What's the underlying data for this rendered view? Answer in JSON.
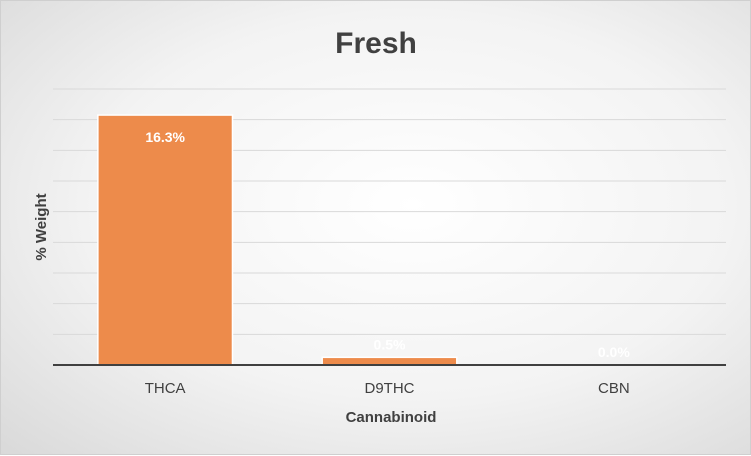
{
  "chart_data": {
    "type": "bar",
    "title": "Fresh",
    "xlabel": "Cannabinoid",
    "ylabel": "% Weight",
    "categories": [
      "THCA",
      "D9THC",
      "CBN"
    ],
    "values": [
      16.3,
      0.5,
      0.0
    ],
    "data_labels": [
      "16.3%",
      "0.5%",
      "0.0%"
    ],
    "ylim": [
      0,
      18
    ],
    "grid": true,
    "legend": "none",
    "bar_color": "#ED8B4B",
    "bar_edge_color": "#ffffff",
    "grid_color": "#d9d9d9",
    "axis_color": "#404040"
  }
}
